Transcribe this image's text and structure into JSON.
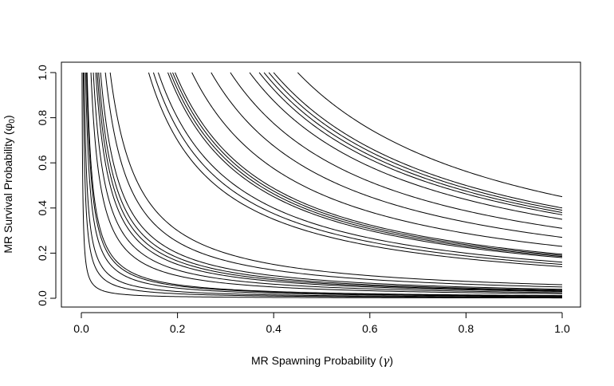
{
  "chart_data": {
    "type": "line",
    "xlabel": "MR Spawning Probability",
    "xlabel_symbol": "γ",
    "ylabel": "MR Survival Probability",
    "ylabel_symbol": "φ",
    "ylabel_subscript": "0",
    "xlim": [
      0,
      1
    ],
    "ylim": [
      0,
      1
    ],
    "x_ticks": [
      "0.0",
      "0.2",
      "0.4",
      "0.6",
      "0.8",
      "1.0"
    ],
    "y_ticks": [
      "0.0",
      "0.2",
      "0.4",
      "0.6",
      "0.8",
      "1.0"
    ],
    "grid": false,
    "legend": "none",
    "curve_form": "y = k / x",
    "series": [
      {
        "k": 0.0015
      },
      {
        "k": 0.004
      },
      {
        "k": 0.006
      },
      {
        "k": 0.009
      },
      {
        "k": 0.011
      },
      {
        "k": 0.012
      },
      {
        "k": 0.02
      },
      {
        "k": 0.025
      },
      {
        "k": 0.03
      },
      {
        "k": 0.033
      },
      {
        "k": 0.036
      },
      {
        "k": 0.04
      },
      {
        "k": 0.05
      },
      {
        "k": 0.06
      },
      {
        "k": 0.14
      },
      {
        "k": 0.15
      },
      {
        "k": 0.16
      },
      {
        "k": 0.18
      },
      {
        "k": 0.185
      },
      {
        "k": 0.19
      },
      {
        "k": 0.195
      },
      {
        "k": 0.23
      },
      {
        "k": 0.27
      },
      {
        "k": 0.31
      },
      {
        "k": 0.35
      },
      {
        "k": 0.37
      },
      {
        "k": 0.38
      },
      {
        "k": 0.39
      },
      {
        "k": 0.4
      },
      {
        "k": 0.45
      }
    ]
  }
}
